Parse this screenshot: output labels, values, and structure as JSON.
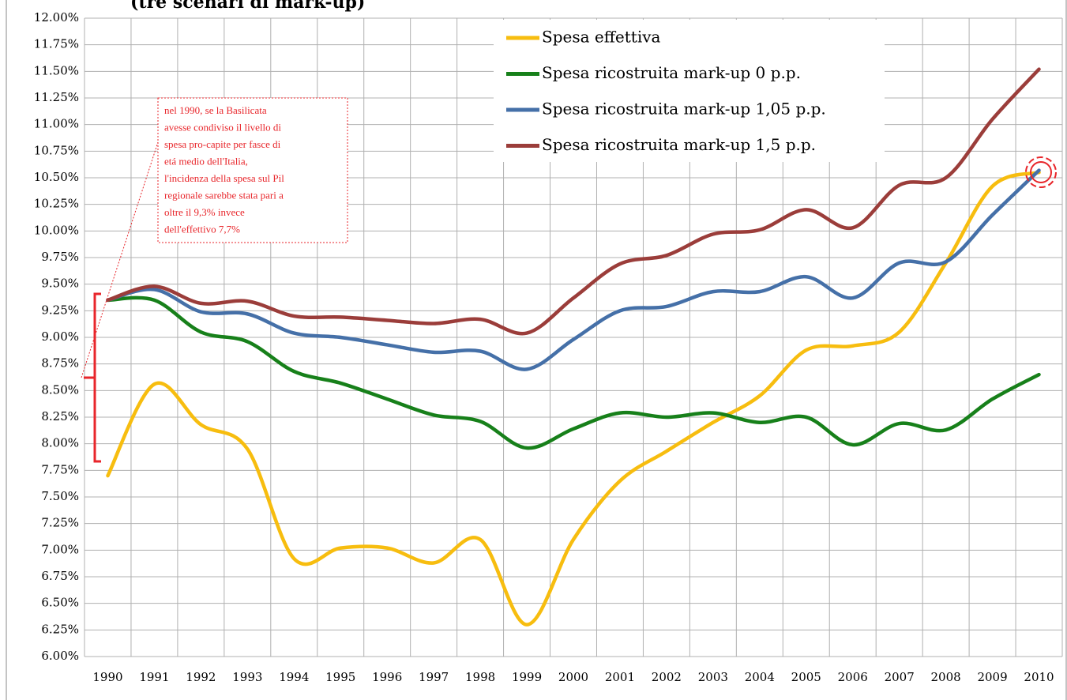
{
  "chart_data": {
    "type": "line",
    "title": "(tre scenari di mark-up)",
    "categories": [
      "1990",
      "1991",
      "1992",
      "1993",
      "1994",
      "1995",
      "1996",
      "1997",
      "1998",
      "1999",
      "2000",
      "2001",
      "2002",
      "2003",
      "2004",
      "2005",
      "2006",
      "2007",
      "2008",
      "2009",
      "2010"
    ],
    "series": [
      {
        "name": "Spesa effettiva",
        "color": "#f7bd0f",
        "values": [
          7.7,
          8.56,
          8.18,
          7.95,
          6.92,
          7.02,
          7.02,
          6.88,
          7.1,
          6.3,
          7.1,
          7.65,
          7.93,
          8.2,
          8.45,
          8.88,
          8.92,
          9.05,
          9.7,
          10.42,
          10.55
        ]
      },
      {
        "name": "Spesa ricostruita mark-up 0 p.p.",
        "color": "#17801a",
        "values": [
          9.35,
          9.35,
          9.05,
          8.96,
          8.68,
          8.57,
          8.42,
          8.27,
          8.21,
          7.96,
          8.14,
          8.29,
          8.25,
          8.29,
          8.2,
          8.25,
          7.99,
          8.19,
          8.13,
          8.42,
          8.65
        ]
      },
      {
        "name": "Spesa ricostruita mark-up 1,05 p.p.",
        "color": "#4570a8",
        "values": [
          9.35,
          9.45,
          9.24,
          9.22,
          9.04,
          9.0,
          8.93,
          8.86,
          8.87,
          8.7,
          8.98,
          9.25,
          9.29,
          9.43,
          9.43,
          9.57,
          9.37,
          9.7,
          9.71,
          10.15,
          10.57
        ]
      },
      {
        "name": "Spesa ricostruita mark-up 1,5 p.p.",
        "color": "#9b3d3a",
        "values": [
          9.35,
          9.48,
          9.32,
          9.34,
          9.2,
          9.19,
          9.16,
          9.13,
          9.17,
          9.04,
          9.37,
          9.69,
          9.77,
          9.97,
          10.01,
          10.2,
          10.03,
          10.43,
          10.5,
          11.05,
          11.52
        ]
      }
    ],
    "ylim": [
      6.0,
      12.0
    ],
    "yticks": [
      {
        "value": 6.0,
        "label": "6.00%"
      },
      {
        "value": 6.25,
        "label": "6.25%"
      },
      {
        "value": 6.5,
        "label": "6.50%"
      },
      {
        "value": 6.75,
        "label": "6.75%"
      },
      {
        "value": 7.0,
        "label": "7.00%"
      },
      {
        "value": 7.25,
        "label": "7.25%"
      },
      {
        "value": 7.5,
        "label": "7.50%"
      },
      {
        "value": 7.75,
        "label": "7.75%"
      },
      {
        "value": 8.0,
        "label": "8.00%"
      },
      {
        "value": 8.25,
        "label": "8.25%"
      },
      {
        "value": 8.5,
        "label": "8.50%"
      },
      {
        "value": 8.75,
        "label": "8.75%"
      },
      {
        "value": 9.0,
        "label": "9.00%"
      },
      {
        "value": 9.25,
        "label": "9.25%"
      },
      {
        "value": 9.5,
        "label": "9.50%"
      },
      {
        "value": 9.75,
        "label": "9.75%"
      },
      {
        "value": 10.0,
        "label": "10.00%"
      },
      {
        "value": 10.25,
        "label": "10.25%"
      },
      {
        "value": 10.5,
        "label": "10.50%"
      },
      {
        "value": 10.75,
        "label": "10.75%"
      },
      {
        "value": 11.0,
        "label": "11.00%"
      },
      {
        "value": 11.25,
        "label": "11.25%"
      },
      {
        "value": 11.5,
        "label": "11.50%"
      },
      {
        "value": 11.75,
        "label": "11.75%"
      },
      {
        "value": 12.0,
        "label": "12.00%"
      }
    ],
    "grid": true,
    "legend": "top",
    "annotation": [
      "nel 1990, se la Basilicata",
      "avesse condiviso il livello di",
      "spesa pro-capite per fasce di",
      "etá  medio dell'Italia,",
      "l'incidenza della spesa sul Pil",
      "regionale sarebbe stata pari a",
      "oltre il 9,3% invece",
      "dell'effettivo  7,7%"
    ]
  }
}
